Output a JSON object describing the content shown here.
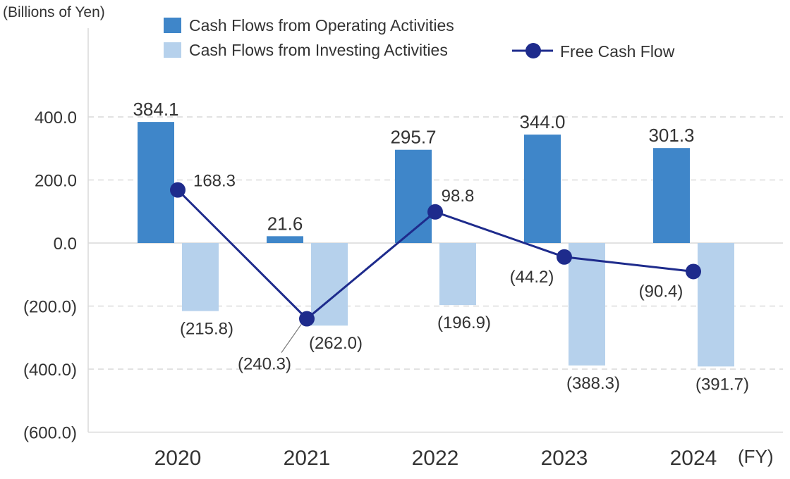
{
  "chart_data": {
    "type": "bar",
    "unit_label": "(Billions of Yen)",
    "x_unit_label": "(FY)",
    "categories": [
      "2020",
      "2021",
      "2022",
      "2023",
      "2024"
    ],
    "ylim": [
      -600,
      400
    ],
    "yticks": [
      400,
      200,
      0,
      -200,
      -400,
      -600
    ],
    "ytick_labels": [
      "400.0",
      "200.0",
      "0.0",
      "(200.0)",
      "(400.0)",
      "(600.0)"
    ],
    "grid": true,
    "legend_placement": "top",
    "series": [
      {
        "name": "Cash Flows from Operating Activities",
        "kind": "bar",
        "color": "#3f86c9",
        "values": [
          384.1,
          21.6,
          295.7,
          344.0,
          301.3
        ],
        "labels": [
          "384.1",
          "21.6",
          "295.7",
          "344.0",
          "301.3"
        ]
      },
      {
        "name": "Cash Flows from Investing Activities",
        "kind": "bar",
        "color": "#b6d1ec",
        "values": [
          -215.8,
          -262.0,
          -196.9,
          -388.3,
          -391.7
        ],
        "labels": [
          "(215.8)",
          "(262.0)",
          "(196.9)",
          "(388.3)",
          "(391.7)"
        ]
      },
      {
        "name": "Free Cash Flow",
        "kind": "line",
        "color": "#1e2b8c",
        "values": [
          168.3,
          -240.3,
          98.8,
          -44.2,
          -90.4
        ],
        "labels": [
          "168.3",
          "(240.3)",
          "98.8",
          "(44.2)",
          "(90.4)"
        ]
      }
    ]
  }
}
